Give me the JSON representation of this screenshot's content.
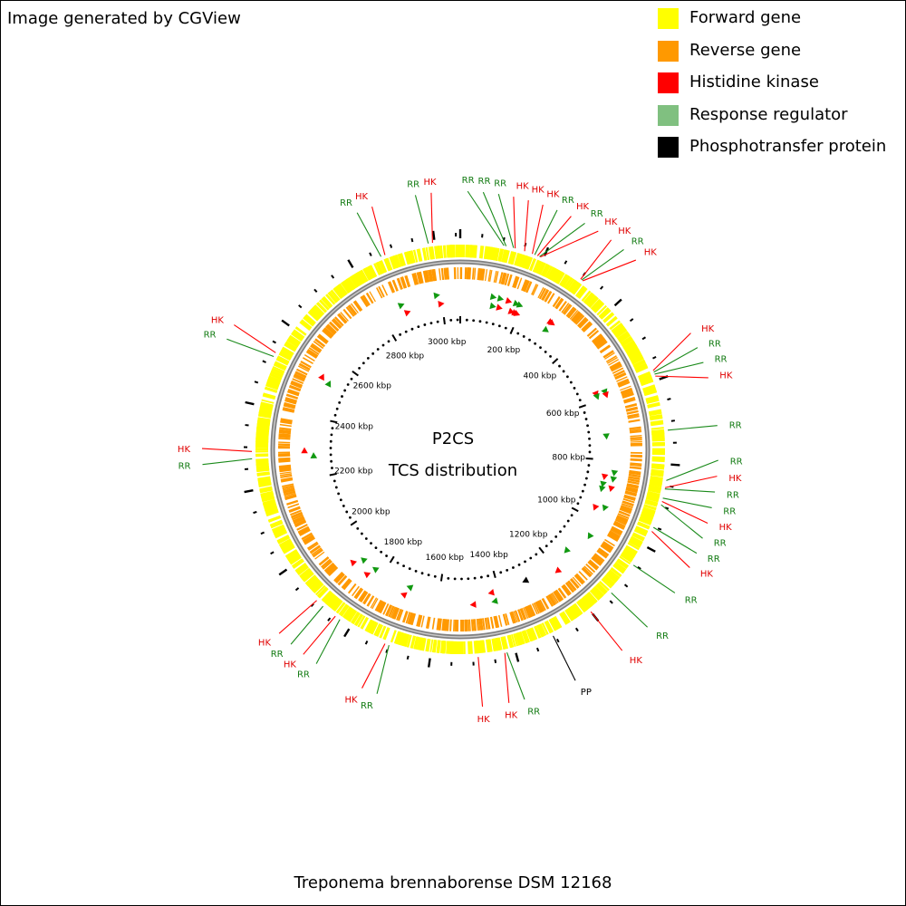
{
  "credit": "Image generated by CGView",
  "legend": [
    {
      "label": "Forward gene",
      "color": "#ffff00"
    },
    {
      "label": "Reverse gene",
      "color": "#ff9900"
    },
    {
      "label": "Histidine kinase",
      "color": "#ff0000"
    },
    {
      "label": "Response regulator",
      "color": "#80c080"
    },
    {
      "label": "Phosphotransfer protein",
      "color": "#000000"
    }
  ],
  "map": {
    "title_line1": "P2CS",
    "title_line2": "TCS distribution",
    "organism": "Treponema brennaborense DSM 12168",
    "genome_length_kbp": 3060,
    "ruler_unit": "kbp",
    "ruler_labels": [
      {
        "kbp": 200,
        "text": "200 kbp"
      },
      {
        "kbp": 400,
        "text": "400 kbp"
      },
      {
        "kbp": 600,
        "text": "600 kbp"
      },
      {
        "kbp": 800,
        "text": "800 kbp"
      },
      {
        "kbp": 1000,
        "text": "1000 kbp"
      },
      {
        "kbp": 1200,
        "text": "1200 kbp"
      },
      {
        "kbp": 1400,
        "text": "1400 kbp"
      },
      {
        "kbp": 1600,
        "text": "1600 kbp"
      },
      {
        "kbp": 1800,
        "text": "1800 kbp"
      },
      {
        "kbp": 2000,
        "text": "2000 kbp"
      },
      {
        "kbp": 2200,
        "text": "2200 kbp"
      },
      {
        "kbp": 2400,
        "text": "2400 kbp"
      },
      {
        "kbp": 2600,
        "text": "2600 kbp"
      },
      {
        "kbp": 2800,
        "text": "2800 kbp"
      },
      {
        "kbp": 3000,
        "text": "3000 kbp"
      }
    ],
    "features": [
      {
        "type": "RR",
        "label": "RR",
        "kbp": 2870
      },
      {
        "type": "HK",
        "label": "HK",
        "kbp": 2880
      },
      {
        "type": "RR",
        "label": "RR",
        "kbp": 2985
      },
      {
        "type": "HK",
        "label": "HK",
        "kbp": 2995
      },
      {
        "type": "RR",
        "label": "RR",
        "kbp": 103
      },
      {
        "type": "RR",
        "label": "RR",
        "kbp": 108
      },
      {
        "type": "RR",
        "label": "RR",
        "kbp": 126
      },
      {
        "type": "HK",
        "label": "HK",
        "kbp": 130
      },
      {
        "type": "HK",
        "label": "HK",
        "kbp": 153
      },
      {
        "type": "HK",
        "label": "HK",
        "kbp": 172
      },
      {
        "type": "RR",
        "label": "RR",
        "kbp": 178
      },
      {
        "type": "HK",
        "label": "HK",
        "kbp": 185
      },
      {
        "type": "RR",
        "label": "RR",
        "kbp": 190
      },
      {
        "type": "HK",
        "label": "HK",
        "kbp": 192
      },
      {
        "type": "HK",
        "label": "HK",
        "kbp": 300
      },
      {
        "type": "RR",
        "label": "RR",
        "kbp": 303
      },
      {
        "type": "HK",
        "label": "HK",
        "kbp": 306
      },
      {
        "type": "HK",
        "label": "HK",
        "kbp": 576
      },
      {
        "type": "RR",
        "label": "RR",
        "kbp": 580
      },
      {
        "type": "RR",
        "label": "RR",
        "kbp": 585
      },
      {
        "type": "HK",
        "label": "HK",
        "kbp": 590
      },
      {
        "type": "RR",
        "label": "RR",
        "kbp": 720
      },
      {
        "type": "RR",
        "label": "RR",
        "kbp": 838
      },
      {
        "type": "HK",
        "label": "HK",
        "kbp": 855
      },
      {
        "type": "RR",
        "label": "RR",
        "kbp": 858
      },
      {
        "type": "RR",
        "label": "RR",
        "kbp": 880
      },
      {
        "type": "HK",
        "label": "HK",
        "kbp": 888
      },
      {
        "type": "RR",
        "label": "RR",
        "kbp": 896
      },
      {
        "type": "RR",
        "label": "RR",
        "kbp": 952
      },
      {
        "type": "HK",
        "label": "HK",
        "kbp": 962
      },
      {
        "type": "RR",
        "label": "RR",
        "kbp": 1052
      },
      {
        "type": "RR",
        "label": "RR",
        "kbp": 1135
      },
      {
        "type": "HK",
        "label": "HK",
        "kbp": 1200
      },
      {
        "type": "PP",
        "label": "PP",
        "kbp": 1305
      },
      {
        "type": "RR",
        "label": "RR",
        "kbp": 1420
      },
      {
        "type": "HK",
        "label": "HK",
        "kbp": 1425
      },
      {
        "type": "HK",
        "label": "HK",
        "kbp": 1488
      },
      {
        "type": "RR",
        "label": "RR",
        "kbp": 1700
      },
      {
        "type": "HK",
        "label": "HK",
        "kbp": 1710
      },
      {
        "type": "RR",
        "label": "RR",
        "kbp": 1830
      },
      {
        "type": "HK",
        "label": "HK",
        "kbp": 1843
      },
      {
        "type": "RR",
        "label": "RR",
        "kbp": 1880
      },
      {
        "type": "HK",
        "label": "HK",
        "kbp": 1900
      },
      {
        "type": "RR",
        "label": "RR",
        "kbp": 2273
      },
      {
        "type": "HK",
        "label": "HK",
        "kbp": 2290
      },
      {
        "type": "RR",
        "label": "RR",
        "kbp": 2520
      },
      {
        "type": "HK",
        "label": "HK",
        "kbp": 2530
      }
    ]
  }
}
